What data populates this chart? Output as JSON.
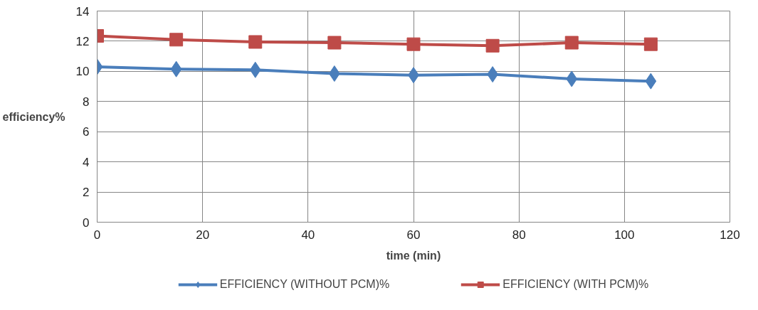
{
  "chart_data": {
    "type": "line",
    "xlabel": "time (min)",
    "ylabel": "efficiency%",
    "x": [
      0,
      15,
      30,
      45,
      60,
      75,
      90,
      105
    ],
    "series": [
      {
        "name": "EFFICIENCY (WITHOUT PCM)%",
        "color": "#4a7ebb",
        "marker": "diamond",
        "values": [
          10.3,
          10.15,
          10.1,
          9.85,
          9.75,
          9.8,
          9.5,
          9.35
        ]
      },
      {
        "name": "EFFICIENCY (WITH PCM)%",
        "color": "#be4b48",
        "marker": "square",
        "values": [
          12.35,
          12.1,
          11.95,
          11.9,
          11.8,
          11.7,
          11.9,
          11.8
        ]
      }
    ],
    "xlim": [
      0,
      120
    ],
    "xticks": [
      0,
      20,
      40,
      60,
      80,
      100,
      120
    ],
    "ylim": [
      0,
      14
    ],
    "yticks": [
      0,
      2,
      4,
      6,
      8,
      10,
      12,
      14
    ],
    "grid": true,
    "legend": "bottom",
    "line_style": "solid"
  }
}
